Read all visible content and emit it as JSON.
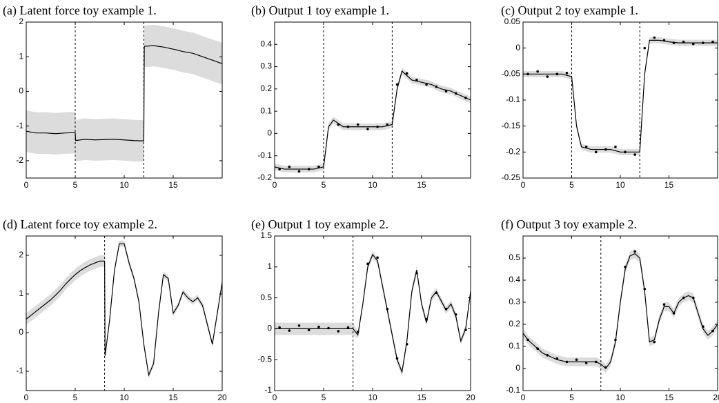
{
  "chart_data": [
    {
      "type": "line",
      "title": "(a) Latent force toy example 1.",
      "xlim": [
        0,
        20
      ],
      "ylim": [
        -2.5,
        2
      ],
      "xticks": [
        0,
        5,
        10,
        15
      ],
      "yticks": [
        -2,
        -1,
        0,
        1,
        2
      ],
      "switch_points": [
        5,
        12
      ],
      "x": [
        0,
        1,
        2,
        3,
        4,
        5,
        5.05,
        6,
        7,
        8,
        9,
        10,
        11,
        12,
        12.05,
        13,
        14,
        15,
        16,
        17,
        18,
        19,
        20
      ],
      "mean": [
        -1.15,
        -1.2,
        -1.2,
        -1.22,
        -1.2,
        -1.19,
        -1.42,
        -1.38,
        -1.4,
        -1.39,
        -1.38,
        -1.4,
        -1.42,
        -1.43,
        1.3,
        1.32,
        1.28,
        1.22,
        1.15,
        1.1,
        1.0,
        0.9,
        0.8
      ],
      "errors": [
        0.6,
        0.6,
        0.6,
        0.6,
        0.6,
        0.6,
        0.6,
        0.6,
        0.6,
        0.6,
        0.6,
        0.6,
        0.6,
        0.6,
        0.6,
        0.6,
        0.6,
        0.6,
        0.6,
        0.6,
        0.6,
        0.6,
        0.6
      ]
    },
    {
      "type": "line",
      "title": "(b) Output 1 toy example 1.",
      "xlim": [
        0,
        20
      ],
      "ylim": [
        -0.2,
        0.5
      ],
      "xticks": [
        0,
        5,
        10,
        15
      ],
      "yticks": [
        -0.2,
        -0.1,
        0,
        0.1,
        0.2,
        0.3,
        0.4
      ],
      "switch_points": [
        5,
        12
      ],
      "x": [
        0,
        1,
        2,
        3,
        4,
        5,
        5.5,
        6,
        7,
        8,
        9,
        10,
        11,
        12,
        12.5,
        13,
        14,
        15,
        16,
        17,
        18,
        19,
        20
      ],
      "mean": [
        -0.15,
        -0.16,
        -0.16,
        -0.16,
        -0.16,
        -0.15,
        0.03,
        0.06,
        0.03,
        0.03,
        0.03,
        0.03,
        0.03,
        0.04,
        0.2,
        0.28,
        0.24,
        0.23,
        0.22,
        0.2,
        0.19,
        0.17,
        0.15
      ],
      "errors": [
        0.015,
        0.015,
        0.015,
        0.015,
        0.015,
        0.015,
        0.015,
        0.015,
        0.015,
        0.015,
        0.015,
        0.015,
        0.015,
        0.015,
        0.015,
        0.015,
        0.015,
        0.015,
        0.015,
        0.015,
        0.015,
        0.015,
        0.015
      ],
      "obs_x": [
        0.5,
        1.5,
        2.5,
        3.5,
        4.5,
        6.5,
        7.5,
        8.5,
        9.5,
        10.5,
        11.5,
        12.5,
        13.5,
        14.5,
        15.5,
        16.5,
        17.5,
        18.5,
        19.5
      ],
      "obs": [
        -0.16,
        -0.15,
        -0.17,
        -0.16,
        -0.15,
        0.04,
        0.03,
        0.04,
        0.02,
        0.03,
        0.04,
        0.22,
        0.27,
        0.24,
        0.22,
        0.21,
        0.19,
        0.18,
        0.16
      ]
    },
    {
      "type": "line",
      "title": "(c) Output 2 toy example 1.",
      "xlim": [
        0,
        20
      ],
      "ylim": [
        -0.25,
        0.05
      ],
      "xticks": [
        0,
        5,
        10,
        15
      ],
      "yticks": [
        -0.25,
        -0.2,
        -0.15,
        -0.1,
        -0.05,
        0,
        0.05
      ],
      "switch_points": [
        5,
        12
      ],
      "x": [
        0,
        1,
        2,
        3,
        4,
        5,
        5.5,
        6,
        7,
        8,
        9,
        10,
        11,
        12,
        12.5,
        13,
        14,
        15,
        16,
        17,
        18,
        19,
        20
      ],
      "mean": [
        -0.05,
        -0.05,
        -0.05,
        -0.05,
        -0.05,
        -0.055,
        -0.15,
        -0.19,
        -0.195,
        -0.195,
        -0.195,
        -0.2,
        -0.2,
        -0.2,
        -0.05,
        0.015,
        0.015,
        0.012,
        0.01,
        0.01,
        0.01,
        0.01,
        0.01
      ],
      "errors": [
        0.006,
        0.006,
        0.006,
        0.006,
        0.006,
        0.006,
        0.006,
        0.006,
        0.006,
        0.006,
        0.006,
        0.006,
        0.006,
        0.006,
        0.006,
        0.006,
        0.006,
        0.006,
        0.006,
        0.006,
        0.006,
        0.006,
        0.006
      ],
      "obs_x": [
        0.5,
        1.5,
        2.5,
        3.5,
        4.5,
        6.5,
        7.5,
        8.5,
        9.5,
        10.5,
        11.5,
        12.5,
        13.5,
        14.5,
        15.5,
        16.5,
        17.5,
        18.5,
        19.5
      ],
      "obs": [
        -0.05,
        -0.045,
        -0.055,
        -0.05,
        -0.048,
        -0.19,
        -0.2,
        -0.195,
        -0.19,
        -0.2,
        -0.205,
        0.0,
        0.02,
        0.015,
        0.01,
        0.012,
        0.008,
        0.01,
        0.012
      ]
    },
    {
      "type": "line",
      "title": "(d) Latent force toy example 2.",
      "xlim": [
        0,
        20
      ],
      "ylim": [
        -1.5,
        2.5
      ],
      "xticks": [
        0,
        5,
        10,
        15,
        20
      ],
      "yticks": [
        -1,
        0,
        1,
        2
      ],
      "switch_points": [
        8
      ],
      "x": [
        0,
        0.5,
        1,
        1.5,
        2,
        2.5,
        3,
        3.5,
        4,
        4.5,
        5,
        5.5,
        6,
        6.5,
        7,
        7.5,
        8,
        8.05,
        8.5,
        9,
        9.5,
        10,
        10.5,
        11,
        11.5,
        12,
        12.5,
        13,
        13.5,
        14,
        14.5,
        15,
        15.5,
        16,
        16.5,
        17,
        17.5,
        18,
        18.5,
        19,
        19.5,
        20
      ],
      "mean": [
        0.35,
        0.45,
        0.55,
        0.65,
        0.75,
        0.85,
        0.97,
        1.1,
        1.25,
        1.38,
        1.5,
        1.6,
        1.68,
        1.75,
        1.8,
        1.85,
        1.85,
        -0.6,
        0.3,
        1.6,
        2.3,
        2.3,
        1.8,
        1.4,
        0.8,
        -0.3,
        -1.1,
        -0.8,
        0.5,
        1.5,
        1.4,
        0.5,
        0.7,
        1.05,
        0.9,
        0.8,
        0.9,
        0.7,
        0.2,
        -0.3,
        0.5,
        1.3
      ],
      "errors": [
        0.15,
        0.15,
        0.15,
        0.15,
        0.15,
        0.15,
        0.15,
        0.15,
        0.15,
        0.15,
        0.15,
        0.15,
        0.15,
        0.15,
        0.15,
        0.15,
        0.15,
        0.08,
        0.08,
        0.08,
        0.08,
        0.08,
        0.08,
        0.08,
        0.08,
        0.08,
        0.08,
        0.08,
        0.08,
        0.08,
        0.08,
        0.08,
        0.08,
        0.08,
        0.08,
        0.08,
        0.08,
        0.08,
        0.08,
        0.08,
        0.08,
        0.08
      ]
    },
    {
      "type": "line",
      "title": "(e) Output 1 toy example 2.",
      "xlim": [
        0,
        20
      ],
      "ylim": [
        -1,
        1.5
      ],
      "xticks": [
        0,
        5,
        10,
        15,
        20
      ],
      "yticks": [
        -1,
        -0.5,
        0,
        0.5,
        1,
        1.5
      ],
      "switch_points": [
        8
      ],
      "x": [
        0,
        0.5,
        1,
        1.5,
        2,
        2.5,
        3,
        3.5,
        4,
        4.5,
        5,
        5.5,
        6,
        6.5,
        7,
        7.5,
        8,
        8.5,
        9,
        9.5,
        10,
        10.5,
        11,
        11.5,
        12,
        12.5,
        13,
        13.5,
        14,
        14.5,
        15,
        15.5,
        16,
        16.5,
        17,
        17.5,
        18,
        18.5,
        19,
        19.5,
        20
      ],
      "mean": [
        0,
        0,
        0,
        0,
        0,
        0,
        0,
        0,
        0,
        0,
        0,
        0,
        0,
        0,
        0,
        0,
        0,
        -0.1,
        0.4,
        1.0,
        1.2,
        1.1,
        0.7,
        0.3,
        -0.1,
        -0.5,
        -0.7,
        -0.2,
        0.6,
        0.95,
        0.4,
        0.1,
        0.5,
        0.6,
        0.45,
        0.3,
        0.4,
        0.2,
        -0.2,
        0,
        0.6
      ],
      "errors": [
        0.1,
        0.1,
        0.1,
        0.1,
        0.1,
        0.1,
        0.1,
        0.1,
        0.1,
        0.1,
        0.1,
        0.1,
        0.1,
        0.1,
        0.1,
        0.1,
        0.1,
        0.06,
        0.06,
        0.06,
        0.06,
        0.06,
        0.06,
        0.06,
        0.06,
        0.06,
        0.06,
        0.06,
        0.06,
        0.06,
        0.06,
        0.06,
        0.06,
        0.06,
        0.06,
        0.06,
        0.06,
        0.06,
        0.06,
        0.06,
        0.06
      ],
      "obs_x": [
        0.5,
        1.5,
        2.5,
        3.5,
        4.5,
        5.5,
        6.5,
        7.5,
        8.5,
        9.5,
        10.5,
        11.5,
        12.5,
        13.5,
        14.5,
        15.5,
        16.5,
        17.5,
        18.5,
        19.5
      ],
      "obs": [
        0.02,
        -0.03,
        0.05,
        -0.02,
        0.03,
        0.01,
        -0.04,
        0.02,
        -0.05,
        1.05,
        1.15,
        0.32,
        -0.48,
        -0.25,
        0.9,
        0.15,
        0.58,
        0.32,
        0.23,
        -0.02
      ]
    },
    {
      "type": "line",
      "title": "(f) Output 3 toy example 2.",
      "xlim": [
        0,
        20
      ],
      "ylim": [
        -0.1,
        0.6
      ],
      "xticks": [
        0,
        5,
        10,
        15,
        20
      ],
      "yticks": [
        -0.1,
        0,
        0.1,
        0.2,
        0.3,
        0.4,
        0.5
      ],
      "switch_points": [
        8
      ],
      "x": [
        0,
        0.5,
        1,
        1.5,
        2,
        2.5,
        3,
        3.5,
        4,
        4.5,
        5,
        5.5,
        6,
        6.5,
        7,
        7.5,
        8,
        8.5,
        9,
        9.5,
        10,
        10.5,
        11,
        11.5,
        12,
        12.5,
        13,
        13.5,
        14,
        14.5,
        15,
        15.5,
        16,
        16.5,
        17,
        17.5,
        18,
        18.5,
        19,
        19.5,
        20
      ],
      "mean": [
        0.16,
        0.13,
        0.11,
        0.09,
        0.07,
        0.06,
        0.05,
        0.04,
        0.035,
        0.03,
        0.03,
        0.03,
        0.03,
        0.03,
        0.03,
        0.03,
        0.02,
        0.0,
        0.03,
        0.12,
        0.3,
        0.45,
        0.51,
        0.52,
        0.5,
        0.35,
        0.12,
        0.13,
        0.22,
        0.28,
        0.28,
        0.25,
        0.3,
        0.32,
        0.33,
        0.32,
        0.25,
        0.18,
        0.15,
        0.17,
        0.2
      ],
      "errors": [
        0.02,
        0.02,
        0.02,
        0.02,
        0.02,
        0.02,
        0.02,
        0.02,
        0.02,
        0.02,
        0.02,
        0.02,
        0.02,
        0.02,
        0.02,
        0.02,
        0.02,
        0.02,
        0.02,
        0.02,
        0.02,
        0.02,
        0.02,
        0.02,
        0.02,
        0.02,
        0.02,
        0.02,
        0.02,
        0.02,
        0.02,
        0.02,
        0.02,
        0.02,
        0.02,
        0.02,
        0.02,
        0.02,
        0.02,
        0.02,
        0.02
      ],
      "obs_x": [
        0.5,
        1.5,
        2.5,
        3.5,
        4.5,
        5.5,
        6.5,
        7.5,
        8.5,
        9.5,
        10.5,
        11.5,
        12.5,
        13.5,
        14.5,
        15.5,
        16.5,
        17.5,
        18.5,
        19.5
      ],
      "obs": [
        0.13,
        0.09,
        0.06,
        0.045,
        0.03,
        0.04,
        0.025,
        0.03,
        0.005,
        0.13,
        0.46,
        0.53,
        0.36,
        0.12,
        0.29,
        0.25,
        0.32,
        0.32,
        0.19,
        0.17
      ]
    }
  ]
}
